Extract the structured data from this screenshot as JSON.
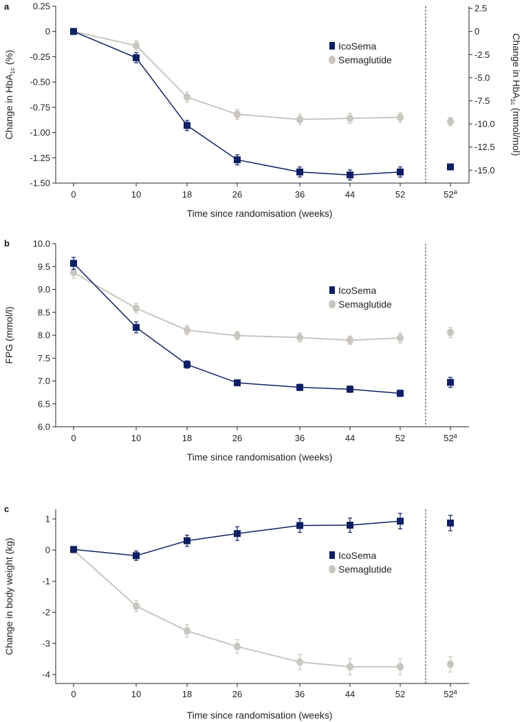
{
  "colors": {
    "icosema": "#0d1f63",
    "semaglutide": "#c9c5bf",
    "axis": "#222222"
  },
  "chart_data": [
    {
      "panel": "a",
      "type": "line",
      "xlabel": "Time since randomisation (weeks)",
      "ylabel": {
        "pre": "Change in HbA",
        "sub": "1c",
        "post": " (%)"
      },
      "ylabel_right": {
        "pre": "Change in HbA",
        "sub": "1c",
        "post": " (mmol/mol)"
      },
      "x_ticks": [
        "0",
        "10",
        "18",
        "26",
        "36",
        "44",
        "52",
        "52"
      ],
      "x_last_superscript": "a",
      "ylim": [
        -1.5,
        0.25
      ],
      "y_ticks": [
        "0.25",
        "0",
        "-0.25",
        "-0.50",
        "-0.75",
        "-1.00",
        "-1.25",
        "-1.50"
      ],
      "y_tick_values": [
        0.25,
        0,
        -0.25,
        -0.5,
        -0.75,
        -1.0,
        -1.25,
        -1.5
      ],
      "y_right_ticks": [
        "2.5",
        "0",
        "-2.5",
        "-5.0",
        "-7.5",
        "-10.0",
        "-12.5",
        "-15.0"
      ],
      "y_right_tick_values": [
        2.5,
        0,
        -2.5,
        -5.0,
        -7.5,
        -10.0,
        -12.5,
        -15.0
      ],
      "y_right_per_left_unit": 10.93,
      "legend": [
        "IcoSema",
        "Semaglutide"
      ],
      "legend_position": "top-right",
      "series": [
        {
          "name": "IcoSema",
          "values": [
            0,
            -0.26,
            -0.93,
            -1.27,
            -1.39,
            -1.42,
            -1.39,
            -1.34
          ],
          "err": [
            0.01,
            0.05,
            0.05,
            0.05,
            0.05,
            0.05,
            0.05,
            0.03
          ]
        },
        {
          "name": "Semaglutide",
          "values": [
            0,
            -0.14,
            -0.65,
            -0.82,
            -0.87,
            -0.86,
            -0.85,
            -0.89
          ],
          "err": [
            0.01,
            0.05,
            0.05,
            0.05,
            0.05,
            0.05,
            0.05,
            0.04
          ]
        }
      ]
    },
    {
      "panel": "b",
      "type": "line",
      "xlabel": "Time since randomisation (weeks)",
      "ylabel": {
        "pre": "FPG (mmol/l)",
        "sub": "",
        "post": ""
      },
      "x_ticks": [
        "0",
        "10",
        "18",
        "26",
        "36",
        "44",
        "52",
        "52"
      ],
      "x_last_superscript": "a",
      "ylim": [
        6.0,
        10.0
      ],
      "y_ticks": [
        "10.0",
        "9.5",
        "9.0",
        "8.5",
        "8.0",
        "7.5",
        "7.0",
        "6.5",
        "6.0"
      ],
      "y_tick_values": [
        10.0,
        9.5,
        9.0,
        8.5,
        8.0,
        7.5,
        7.0,
        6.5,
        6.0
      ],
      "legend": [
        "IcoSema",
        "Semaglutide"
      ],
      "legend_position": "top-right",
      "series": [
        {
          "name": "IcoSema",
          "values": [
            9.57,
            8.17,
            7.36,
            6.96,
            6.86,
            6.82,
            6.73,
            6.97
          ],
          "err": [
            0.13,
            0.12,
            0.08,
            0.06,
            0.07,
            0.07,
            0.07,
            0.11
          ]
        },
        {
          "name": "Semaglutide",
          "values": [
            9.37,
            8.59,
            8.11,
            7.99,
            7.95,
            7.89,
            7.94,
            8.06
          ],
          "err": [
            0.13,
            0.11,
            0.1,
            0.09,
            0.1,
            0.09,
            0.11,
            0.11
          ]
        }
      ]
    },
    {
      "panel": "c",
      "type": "line",
      "xlabel": "Time since randomisation (weeks)",
      "ylabel": {
        "pre": "Change in body weight (kg)",
        "sub": "",
        "post": ""
      },
      "x_ticks": [
        "0",
        "10",
        "18",
        "26",
        "36",
        "44",
        "52",
        "52"
      ],
      "x_last_superscript": "a",
      "ylim": [
        -4.3,
        1.3
      ],
      "y_ticks": [
        "1",
        "0",
        "-1",
        "-2",
        "-3",
        "-4"
      ],
      "y_tick_values": [
        1,
        0,
        -1,
        -2,
        -3,
        -4
      ],
      "legend": [
        "IcoSema",
        "Semaglutide"
      ],
      "legend_position": "center-right",
      "series": [
        {
          "name": "IcoSema",
          "values": [
            0.02,
            -0.18,
            0.3,
            0.53,
            0.79,
            0.8,
            0.93,
            0.87
          ],
          "err": [
            0.03,
            0.15,
            0.18,
            0.22,
            0.22,
            0.23,
            0.25,
            0.25
          ]
        },
        {
          "name": "Semaglutide",
          "values": [
            0,
            -1.8,
            -2.6,
            -3.1,
            -3.6,
            -3.75,
            -3.75,
            -3.67
          ],
          "err": [
            0.03,
            0.18,
            0.2,
            0.22,
            0.25,
            0.26,
            0.26,
            0.25
          ]
        }
      ]
    }
  ]
}
